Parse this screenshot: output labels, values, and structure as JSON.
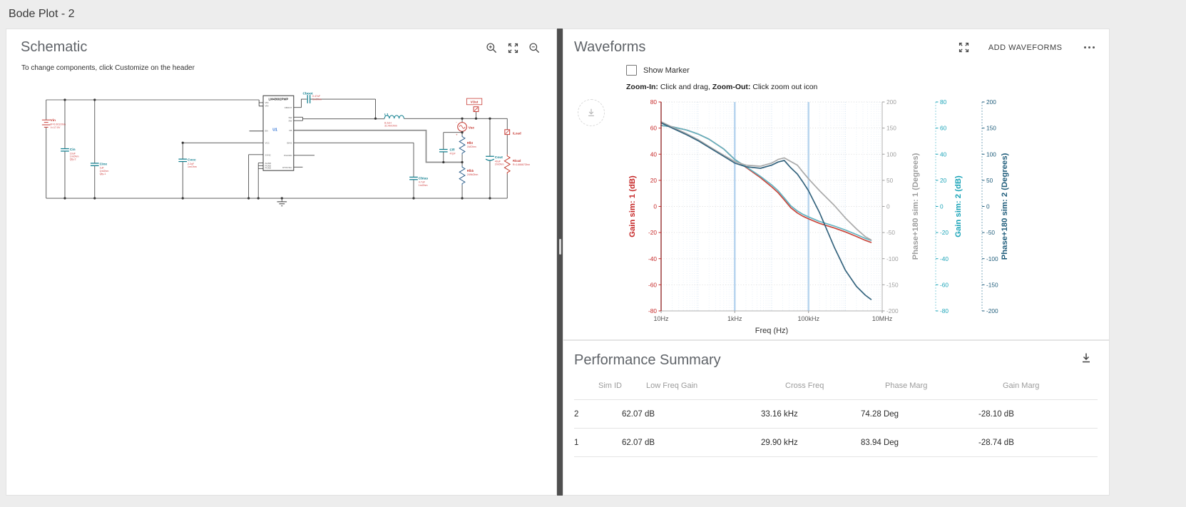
{
  "page": {
    "title": "Bode Plot - 2"
  },
  "schematic": {
    "title": "Schematic",
    "subtitle": "To change components, click Customize on the header",
    "ic": {
      "part": "LM43602PWP",
      "ref": "U1",
      "left_pins": [
        "VIN",
        "VIN",
        "EN",
        "VCC",
        "SYNC",
        "AGND",
        "PGND",
        "PGND"
      ],
      "right_pins": [
        "CBOOT",
        "SW",
        "SW",
        "FB",
        "BIAS",
        "PGOOD",
        "RT/SYNC"
      ]
    },
    "components": {
      "vin": {
        "name": "Vin",
        "lines": [
          "R=0.001Ohm",
          "V=17.0V"
        ]
      },
      "cin": {
        "name": "Cin",
        "lines": [
          "10uF",
          "1mOhm",
          "Qty-2"
        ]
      },
      "cinx": {
        "name": "Cinx",
        "lines": [
          "1uF",
          "1mOhm",
          "Qty-1"
        ]
      },
      "cvcc": {
        "name": "Cvcc",
        "lines": [
          "2.2uF",
          "1mOhm"
        ]
      },
      "cboot": {
        "name": "Cboot",
        "lines": [
          "0.47uF",
          "1mOhm"
        ]
      },
      "l1": {
        "name": "L1",
        "lines": [
          "8.2uH",
          "31.4mOhm"
        ]
      },
      "vout": {
        "name": "VOut"
      },
      "vac": {
        "name": "Vac"
      },
      "rfbt": {
        "name": "Rfbt",
        "lines": [
          "1MOhm"
        ]
      },
      "rfbb": {
        "name": "Rfbb",
        "lines": [
          "249kOhm"
        ]
      },
      "cff": {
        "name": "Cff",
        "lines": [
          "47pF"
        ]
      },
      "cbias": {
        "name": "Cbias",
        "lines": [
          "4.7uF",
          "1mOhm"
        ]
      },
      "cout": {
        "name": "Cout",
        "lines": [
          "40uF",
          "2mOhm"
        ]
      },
      "iload": {
        "name": "ILoad"
      },
      "rload": {
        "name": "Rload",
        "lines": [
          "R=1.66667Ohm"
        ]
      }
    }
  },
  "waveforms": {
    "title": "Waveforms",
    "add_button": "ADD WAVEFORMS",
    "show_marker": "Show Marker",
    "hint": {
      "zoom_in_label": "Zoom-In:",
      "zoom_in_text": " Click and drag, ",
      "zoom_out_label": "Zoom-Out:",
      "zoom_out_text": " Click zoom out icon"
    }
  },
  "chart_data": {
    "type": "line",
    "x": {
      "label": "Freq (Hz)",
      "scale": "log",
      "min": 10,
      "max": 10000000,
      "tick_labels": [
        "10Hz",
        "1kHz",
        "100kHz",
        "10MHz"
      ],
      "tick_values": [
        10,
        1000,
        100000,
        10000000
      ],
      "highlight_lines": [
        1000,
        100000
      ]
    },
    "axes": [
      {
        "id": "gain1",
        "title": "Gain sim: 1 (dB)",
        "color": "#c62828",
        "line": "#8d1d1d",
        "min": -80,
        "max": 80,
        "tick_step": 20,
        "side": "left"
      },
      {
        "id": "phase1",
        "title": "Phase+180 sim: 1 (Degrees)",
        "color": "#9e9e9e",
        "line": "#b0b0b0",
        "min": -200,
        "max": 200,
        "tick_step": 50,
        "side": "right"
      },
      {
        "id": "gain2",
        "title": "Gain sim: 2 (dB)",
        "color": "#1ba4b8",
        "line": "#8fd2dc",
        "min": -80,
        "max": 80,
        "tick_step": 20,
        "side": "right"
      },
      {
        "id": "phase2",
        "title": "Phase+180 sim: 2 (Degrees)",
        "color": "#215e7c",
        "line": "#7fa8bd",
        "min": -200,
        "max": 200,
        "tick_step": 50,
        "side": "right"
      }
    ],
    "series": [
      {
        "name": "Gain sim: 1",
        "axis": "gain1",
        "color": "#c9473d",
        "freq": [
          10,
          20,
          50,
          100,
          200,
          500,
          1000,
          2000,
          5000,
          10000,
          15000,
          22000,
          33000,
          50000,
          70000,
          100000,
          200000,
          500000,
          1000000,
          2000000,
          3500000,
          5000000
        ],
        "values": [
          62,
          61,
          58.5,
          55.5,
          51.5,
          44,
          36,
          30,
          22,
          15,
          10.5,
          5,
          -1,
          -5,
          -7.5,
          -9.5,
          -13,
          -16.5,
          -19.5,
          -23,
          -26,
          -27.5
        ]
      },
      {
        "name": "Gain sim: 2",
        "axis": "gain2",
        "color": "#62b3c1",
        "freq": [
          10,
          20,
          50,
          100,
          200,
          500,
          1000,
          2000,
          5000,
          10000,
          15000,
          22000,
          33000,
          50000,
          70000,
          100000,
          200000,
          500000,
          1000000,
          2000000,
          3500000,
          5000000
        ],
        "values": [
          62,
          61,
          58.5,
          55.5,
          51.5,
          44,
          36,
          30.5,
          23,
          16.5,
          12,
          6.5,
          0.5,
          -3.5,
          -6,
          -8,
          -11.5,
          -15,
          -18,
          -21.5,
          -24.5,
          -26
        ]
      },
      {
        "name": "Phase+180 sim: 1",
        "axis": "phase1",
        "color": "#aaaaaa",
        "freq": [
          10,
          20,
          50,
          100,
          200,
          500,
          1000,
          2000,
          5000,
          10000,
          15000,
          22000,
          33000,
          50000,
          70000,
          100000,
          200000,
          500000,
          1000000,
          2000000,
          3500000,
          5000000
        ],
        "values": [
          162,
          152,
          139,
          128,
          115,
          98,
          86,
          79,
          77,
          83,
          90,
          93,
          86,
          79,
          66,
          53,
          30,
          2,
          -22,
          -43,
          -58,
          -64
        ]
      },
      {
        "name": "Phase+180 sim: 2",
        "axis": "phase2",
        "color": "#35647e",
        "freq": [
          10,
          20,
          50,
          100,
          200,
          500,
          1000,
          2000,
          5000,
          10000,
          15000,
          22000,
          33000,
          50000,
          70000,
          100000,
          200000,
          500000,
          1000000,
          2000000,
          3500000,
          5000000
        ],
        "values": [
          160,
          150,
          137,
          126,
          113,
          96,
          83,
          76,
          73,
          79,
          85,
          88,
          74,
          62,
          47,
          30,
          -12,
          -78,
          -122,
          -153,
          -170,
          -178
        ]
      }
    ]
  },
  "performance": {
    "title": "Performance Summary",
    "columns": [
      "Sim ID",
      "Low Freq Gain",
      "Cross Freq",
      "Phase Marg",
      "Gain Marg"
    ],
    "rows": [
      [
        "2",
        "62.07 dB",
        "33.16 kHz",
        "74.28 Deg",
        "-28.10 dB"
      ],
      [
        "1",
        "62.07 dB",
        "29.90 kHz",
        "83.94 Deg",
        "-28.74 dB"
      ]
    ]
  }
}
